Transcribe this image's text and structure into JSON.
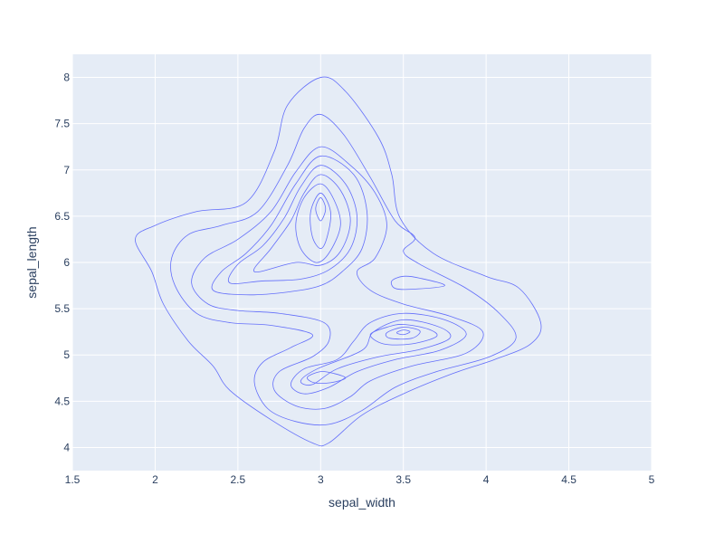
{
  "chart_data": {
    "type": "contour",
    "title": "",
    "xlabel": "sepal_width",
    "ylabel": "sepal_length",
    "xlim": [
      1.5,
      5
    ],
    "ylim": [
      3.75,
      8.25
    ],
    "x_ticks": [
      1.5,
      2,
      2.5,
      3,
      3.5,
      4,
      4.5,
      5
    ],
    "y_ticks": [
      4,
      4.5,
      5,
      5.5,
      6,
      6.5,
      7,
      7.5,
      8
    ],
    "x_tick_labels": [
      "1.5",
      "2",
      "2.5",
      "3",
      "3.5",
      "4",
      "4.5",
      "5"
    ],
    "y_tick_labels": [
      "4",
      "4.5",
      "5",
      "5.5",
      "6",
      "6.5",
      "7",
      "7.5",
      "8"
    ],
    "grid": true,
    "plot_background": "#e5ecf6",
    "line_color": "#636efa",
    "contours": [
      {
        "level": 1,
        "points": [
          [
            3.0,
            8.0
          ],
          [
            3.15,
            7.85
          ],
          [
            3.35,
            7.35
          ],
          [
            3.43,
            6.95
          ],
          [
            3.48,
            6.48
          ],
          [
            3.68,
            6.1
          ],
          [
            4.0,
            5.85
          ],
          [
            4.2,
            5.72
          ],
          [
            4.33,
            5.35
          ],
          [
            4.27,
            5.12
          ],
          [
            4.05,
            4.95
          ],
          [
            3.8,
            4.8
          ],
          [
            3.5,
            4.58
          ],
          [
            3.25,
            4.35
          ],
          [
            3.05,
            4.05
          ],
          [
            2.95,
            4.05
          ],
          [
            2.7,
            4.3
          ],
          [
            2.45,
            4.62
          ],
          [
            2.35,
            4.88
          ],
          [
            2.2,
            5.15
          ],
          [
            2.05,
            5.55
          ],
          [
            1.98,
            5.9
          ],
          [
            1.88,
            6.25
          ],
          [
            2.0,
            6.4
          ],
          [
            2.25,
            6.55
          ],
          [
            2.55,
            6.65
          ],
          [
            2.72,
            7.2
          ],
          [
            2.8,
            7.7
          ],
          [
            3.0,
            8.0
          ]
        ]
      },
      {
        "level": 2,
        "points": [
          [
            3.0,
            7.6
          ],
          [
            3.14,
            7.38
          ],
          [
            3.3,
            6.92
          ],
          [
            3.45,
            6.45
          ],
          [
            3.57,
            6.27
          ],
          [
            3.5,
            6.12
          ],
          [
            3.6,
            5.98
          ],
          [
            3.88,
            5.72
          ],
          [
            4.08,
            5.45
          ],
          [
            4.18,
            5.18
          ],
          [
            4.02,
            4.98
          ],
          [
            3.7,
            4.82
          ],
          [
            3.45,
            4.65
          ],
          [
            3.25,
            4.4
          ],
          [
            3.05,
            4.25
          ],
          [
            2.85,
            4.28
          ],
          [
            2.68,
            4.42
          ],
          [
            2.6,
            4.7
          ],
          [
            2.65,
            4.92
          ],
          [
            2.82,
            5.08
          ],
          [
            2.95,
            5.22
          ],
          [
            2.7,
            5.32
          ],
          [
            2.45,
            5.35
          ],
          [
            2.25,
            5.45
          ],
          [
            2.12,
            5.75
          ],
          [
            2.1,
            6.05
          ],
          [
            2.2,
            6.3
          ],
          [
            2.4,
            6.4
          ],
          [
            2.62,
            6.55
          ],
          [
            2.8,
            7.05
          ],
          [
            2.9,
            7.45
          ],
          [
            3.0,
            7.6
          ]
        ]
      },
      {
        "level": 3,
        "points": [
          [
            3.0,
            7.25
          ],
          [
            3.18,
            7.05
          ],
          [
            3.33,
            6.75
          ],
          [
            3.4,
            6.4
          ],
          [
            3.33,
            6.05
          ],
          [
            3.22,
            5.9
          ],
          [
            3.3,
            5.7
          ],
          [
            3.5,
            5.55
          ],
          [
            3.78,
            5.42
          ],
          [
            3.98,
            5.25
          ],
          [
            3.88,
            5.02
          ],
          [
            3.55,
            4.88
          ],
          [
            3.3,
            4.72
          ],
          [
            3.18,
            4.55
          ],
          [
            3.02,
            4.42
          ],
          [
            2.85,
            4.45
          ],
          [
            2.72,
            4.62
          ],
          [
            2.75,
            4.82
          ],
          [
            2.95,
            4.98
          ],
          [
            3.05,
            5.15
          ],
          [
            3.02,
            5.35
          ],
          [
            2.75,
            5.45
          ],
          [
            2.5,
            5.48
          ],
          [
            2.32,
            5.55
          ],
          [
            2.22,
            5.78
          ],
          [
            2.3,
            6.05
          ],
          [
            2.5,
            6.25
          ],
          [
            2.7,
            6.55
          ],
          [
            2.85,
            6.98
          ],
          [
            3.0,
            7.25
          ]
        ]
      },
      {
        "level": 4,
        "points": [
          [
            3.0,
            7.15
          ],
          [
            3.2,
            6.95
          ],
          [
            3.28,
            6.55
          ],
          [
            3.25,
            6.15
          ],
          [
            3.13,
            5.9
          ],
          [
            3.0,
            5.75
          ],
          [
            2.8,
            5.68
          ],
          [
            2.55,
            5.65
          ],
          [
            2.35,
            5.7
          ],
          [
            2.4,
            5.9
          ],
          [
            2.55,
            6.1
          ],
          [
            2.7,
            6.4
          ],
          [
            2.85,
            6.85
          ],
          [
            3.0,
            7.15
          ]
        ]
      },
      {
        "level": 5,
        "points": [
          [
            3.0,
            7.05
          ],
          [
            3.15,
            6.85
          ],
          [
            3.22,
            6.5
          ],
          [
            3.18,
            6.15
          ],
          [
            3.05,
            5.92
          ],
          [
            2.88,
            5.82
          ],
          [
            2.65,
            5.8
          ],
          [
            2.45,
            5.78
          ],
          [
            2.5,
            5.98
          ],
          [
            2.65,
            6.18
          ],
          [
            2.78,
            6.48
          ],
          [
            2.88,
            6.82
          ],
          [
            3.0,
            7.05
          ]
        ]
      },
      {
        "level": 6,
        "points": [
          [
            3.0,
            6.95
          ],
          [
            3.12,
            6.78
          ],
          [
            3.18,
            6.45
          ],
          [
            3.12,
            6.12
          ],
          [
            3.0,
            5.97
          ],
          [
            2.85,
            6.0
          ],
          [
            2.6,
            5.9
          ],
          [
            2.7,
            6.15
          ],
          [
            2.82,
            6.45
          ],
          [
            2.9,
            6.75
          ],
          [
            3.0,
            6.95
          ]
        ]
      },
      {
        "level": 7,
        "points": [
          [
            3.0,
            6.85
          ],
          [
            3.08,
            6.68
          ],
          [
            3.12,
            6.4
          ],
          [
            3.05,
            6.1
          ],
          [
            2.97,
            6.0
          ],
          [
            2.88,
            6.15
          ],
          [
            2.85,
            6.42
          ],
          [
            2.9,
            6.7
          ],
          [
            3.0,
            6.85
          ]
        ]
      },
      {
        "level": 8,
        "points": [
          [
            3.0,
            6.75
          ],
          [
            3.06,
            6.55
          ],
          [
            3.04,
            6.28
          ],
          [
            3.0,
            6.15
          ],
          [
            2.95,
            6.28
          ],
          [
            2.94,
            6.55
          ],
          [
            3.0,
            6.75
          ]
        ]
      },
      {
        "level": 9,
        "points": [
          [
            3.0,
            6.7
          ],
          [
            3.03,
            6.58
          ],
          [
            3.0,
            6.45
          ],
          [
            2.97,
            6.58
          ],
          [
            3.0,
            6.7
          ]
        ]
      },
      {
        "level": 10,
        "points": [
          [
            3.5,
            5.85
          ],
          [
            3.6,
            5.83
          ],
          [
            3.75,
            5.75
          ],
          [
            3.55,
            5.71
          ],
          [
            3.45,
            5.72
          ],
          [
            3.43,
            5.8
          ],
          [
            3.5,
            5.85
          ]
        ]
      },
      {
        "level": 11,
        "points": [
          [
            3.5,
            5.45
          ],
          [
            3.75,
            5.38
          ],
          [
            3.88,
            5.22
          ],
          [
            3.72,
            5.05
          ],
          [
            3.45,
            4.95
          ],
          [
            3.22,
            4.82
          ],
          [
            3.05,
            4.65
          ],
          [
            2.9,
            4.58
          ],
          [
            2.82,
            4.68
          ],
          [
            2.9,
            4.85
          ],
          [
            3.1,
            4.95
          ],
          [
            3.2,
            5.15
          ],
          [
            3.3,
            5.35
          ],
          [
            3.5,
            5.45
          ]
        ]
      },
      {
        "level": 12,
        "points": [
          [
            3.5,
            5.38
          ],
          [
            3.72,
            5.3
          ],
          [
            3.78,
            5.18
          ],
          [
            3.6,
            5.06
          ],
          [
            3.35,
            4.98
          ],
          [
            3.1,
            4.85
          ],
          [
            2.95,
            4.68
          ],
          [
            2.88,
            4.72
          ],
          [
            2.98,
            4.85
          ],
          [
            3.25,
            5.05
          ],
          [
            3.32,
            5.25
          ],
          [
            3.5,
            5.38
          ]
        ]
      },
      {
        "level": 13,
        "points": [
          [
            3.5,
            5.33
          ],
          [
            3.65,
            5.28
          ],
          [
            3.7,
            5.2
          ],
          [
            3.55,
            5.12
          ],
          [
            3.38,
            5.12
          ],
          [
            3.3,
            5.22
          ],
          [
            3.4,
            5.3
          ],
          [
            3.5,
            5.33
          ]
        ]
      },
      {
        "level": 14,
        "points": [
          [
            3.5,
            5.3
          ],
          [
            3.6,
            5.26
          ],
          [
            3.55,
            5.18
          ],
          [
            3.42,
            5.18
          ],
          [
            3.4,
            5.24
          ],
          [
            3.5,
            5.3
          ]
        ]
      },
      {
        "level": 15,
        "points": [
          [
            3.5,
            5.27
          ],
          [
            3.54,
            5.25
          ],
          [
            3.5,
            5.22
          ],
          [
            3.46,
            5.24
          ],
          [
            3.5,
            5.27
          ]
        ]
      },
      {
        "level": 16,
        "points": [
          [
            3.0,
            4.82
          ],
          [
            3.08,
            4.8
          ],
          [
            3.15,
            4.75
          ],
          [
            3.06,
            4.7
          ],
          [
            2.96,
            4.7
          ],
          [
            2.92,
            4.76
          ],
          [
            3.0,
            4.82
          ]
        ]
      }
    ]
  }
}
